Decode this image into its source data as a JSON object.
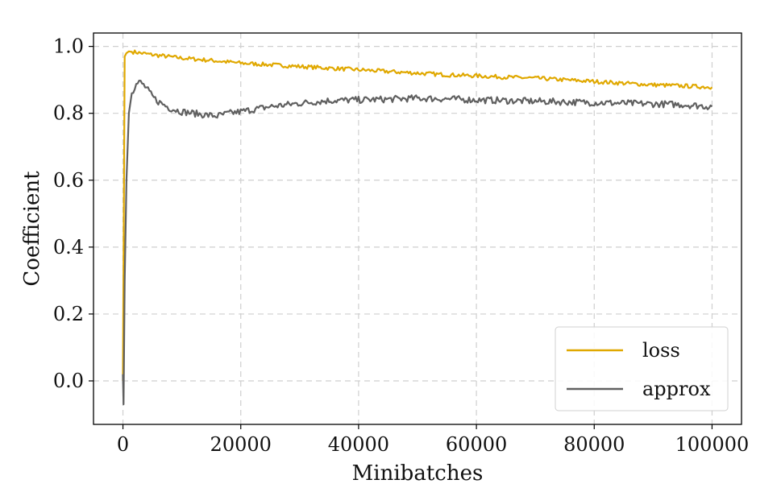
{
  "chart_data": {
    "type": "line",
    "xlabel": "Minibatches",
    "ylabel": "Coefficient",
    "xlim": [
      -5000,
      105000
    ],
    "ylim": [
      -0.13,
      1.04
    ],
    "xticks": [
      0,
      20000,
      40000,
      60000,
      80000,
      100000
    ],
    "xtick_labels": [
      "0",
      "20000",
      "40000",
      "60000",
      "80000",
      "100000"
    ],
    "yticks": [
      0.0,
      0.2,
      0.4,
      0.6,
      0.8,
      1.0
    ],
    "ytick_labels": [
      "0.0",
      "0.2",
      "0.4",
      "0.6",
      "0.8",
      "1.0"
    ],
    "grid": true,
    "legend_position": "bottom-right",
    "series": [
      {
        "name": "loss",
        "color": "#e0a800",
        "x": [
          0,
          300,
          600,
          1000,
          2000,
          3000,
          5000,
          10000,
          15000,
          20000,
          25000,
          30000,
          35000,
          40000,
          45000,
          50000,
          55000,
          60000,
          65000,
          70000,
          75000,
          80000,
          85000,
          90000,
          95000,
          100000
        ],
        "y": [
          0.0,
          0.97,
          0.98,
          0.985,
          0.983,
          0.98,
          0.975,
          0.965,
          0.958,
          0.95,
          0.945,
          0.94,
          0.935,
          0.93,
          0.925,
          0.92,
          0.915,
          0.912,
          0.908,
          0.905,
          0.9,
          0.895,
          0.89,
          0.885,
          0.882,
          0.878
        ]
      },
      {
        "name": "approx",
        "color": "#606060",
        "x": [
          0,
          100,
          300,
          600,
          1000,
          1500,
          2000,
          2500,
          3000,
          4000,
          5000,
          6000,
          8000,
          10000,
          12000,
          14000,
          16000,
          18000,
          20000,
          25000,
          30000,
          35000,
          40000,
          45000,
          50000,
          55000,
          60000,
          65000,
          70000,
          75000,
          80000,
          85000,
          90000,
          95000,
          100000
        ],
        "y": [
          0.02,
          -0.07,
          0.3,
          0.6,
          0.8,
          0.86,
          0.88,
          0.89,
          0.893,
          0.875,
          0.85,
          0.835,
          0.815,
          0.805,
          0.8,
          0.795,
          0.792,
          0.8,
          0.805,
          0.82,
          0.83,
          0.838,
          0.84,
          0.842,
          0.845,
          0.843,
          0.84,
          0.838,
          0.836,
          0.834,
          0.832,
          0.83,
          0.828,
          0.826,
          0.82
        ]
      }
    ]
  }
}
